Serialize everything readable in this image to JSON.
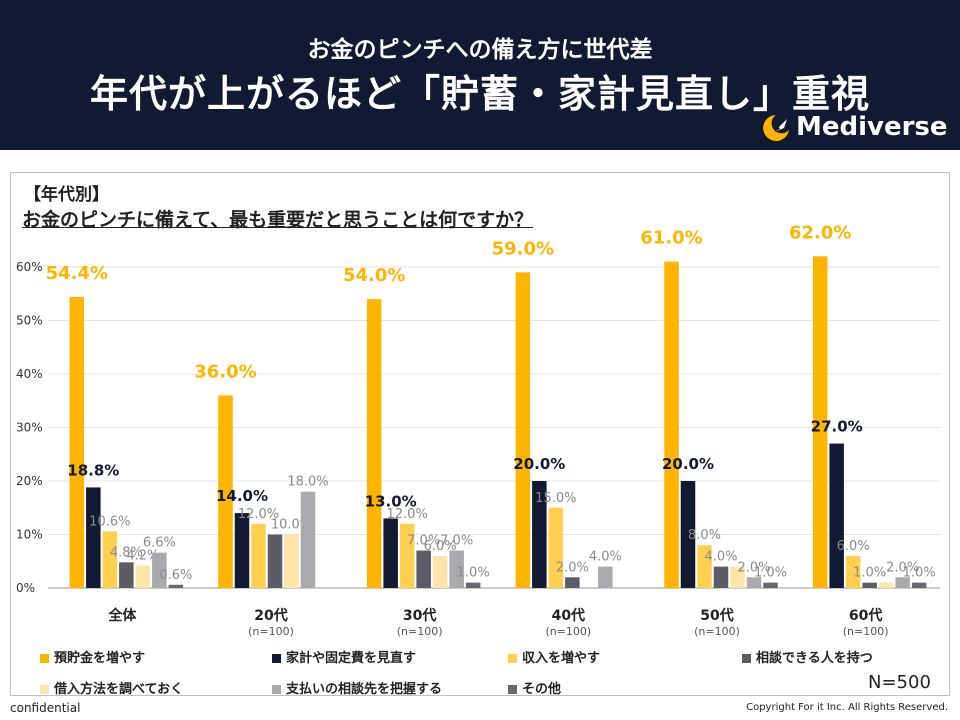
{
  "header": {
    "subtitle": "お金のピンチへの備え方に世代差",
    "title": "年代が上がるほど「貯蓄・家計見直し」重視",
    "brand": "Mediverse",
    "brand_logo_icon": "crescent-rocket-logo-icon"
  },
  "question": {
    "tag": "【年代別】",
    "text": "お金のピンチに備えて、最も重要だと思うことは何ですか？"
  },
  "n_label": "N=500",
  "footer": {
    "left": "confidential",
    "right": "Copyright For it Inc. All Rights Reserved."
  },
  "colors": {
    "header_bg": "#121a33",
    "s1": "#ffb400",
    "s2": "#121a33",
    "s3": "#ffd04f",
    "s4": "#5c5c66",
    "s5": "#fde4a8",
    "s6": "#a9a9ae",
    "s7": "#66666d"
  },
  "chart_data": {
    "type": "bar",
    "categories": [
      "全体",
      "20代",
      "30代",
      "40代",
      "50代",
      "60代"
    ],
    "category_sublabels": [
      "",
      "(n=100)",
      "(n=100)",
      "(n=100)",
      "(n=100)",
      "(n=100)"
    ],
    "ylim": [
      0,
      60
    ],
    "yticks": [
      "0%",
      "10%",
      "20%",
      "30%",
      "40%",
      "50%",
      "60%"
    ],
    "grid": true,
    "legend_position": "bottom",
    "series": [
      {
        "name": "預貯金を増やす",
        "color": "#ffb400",
        "values": [
          54.4,
          36.0,
          54.0,
          59.0,
          61.0,
          62.0
        ],
        "labels": [
          "54.4%",
          "36.0%",
          "54.0%",
          "59.0%",
          "61.0%",
          "62.0%"
        ]
      },
      {
        "name": "家計や固定費を見直す",
        "color": "#121a33",
        "values": [
          18.8,
          14.0,
          13.0,
          20.0,
          20.0,
          27.0
        ],
        "labels": [
          "18.8%",
          "14.0%",
          "13.0%",
          "20.0%",
          "20.0%",
          "27.0%"
        ]
      },
      {
        "name": "収入を増やす",
        "color": "#ffd04f",
        "values": [
          10.6,
          12.0,
          12.0,
          15.0,
          8.0,
          6.0
        ],
        "labels": [
          "10.6%",
          "12.0%",
          "12.0%",
          "15.0%",
          "8.0%",
          "6.0%"
        ]
      },
      {
        "name": "相談できる人を持つ",
        "color": "#5c5c66",
        "values": [
          4.8,
          10.0,
          7.0,
          2.0,
          4.0,
          1.0
        ],
        "labels": [
          "4.8%",
          "",
          "7.0%",
          "2.0%",
          "4.0%",
          "1.0%"
        ]
      },
      {
        "name": "借入方法を調べておく",
        "color": "#fde4a8",
        "values": [
          4.2,
          10.0,
          6.0,
          0.0,
          4.0,
          1.0
        ],
        "labels": [
          "4.2%",
          "10.0%",
          "6.0%",
          "",
          "",
          ""
        ]
      },
      {
        "name": "支払いの相談先を把握する",
        "color": "#a9a9ae",
        "values": [
          6.6,
          18.0,
          7.0,
          4.0,
          2.0,
          2.0
        ],
        "labels": [
          "6.6%",
          "18.0%",
          "7.0%",
          "4.0%",
          "2.0%",
          "2.0%"
        ]
      },
      {
        "name": "その他",
        "color": "#66666d",
        "values": [
          0.6,
          0.0,
          1.0,
          0.0,
          1.0,
          1.0
        ],
        "labels": [
          "0.6%",
          "",
          "1.0%",
          "",
          "1.0%",
          "1.0%"
        ]
      }
    ]
  }
}
